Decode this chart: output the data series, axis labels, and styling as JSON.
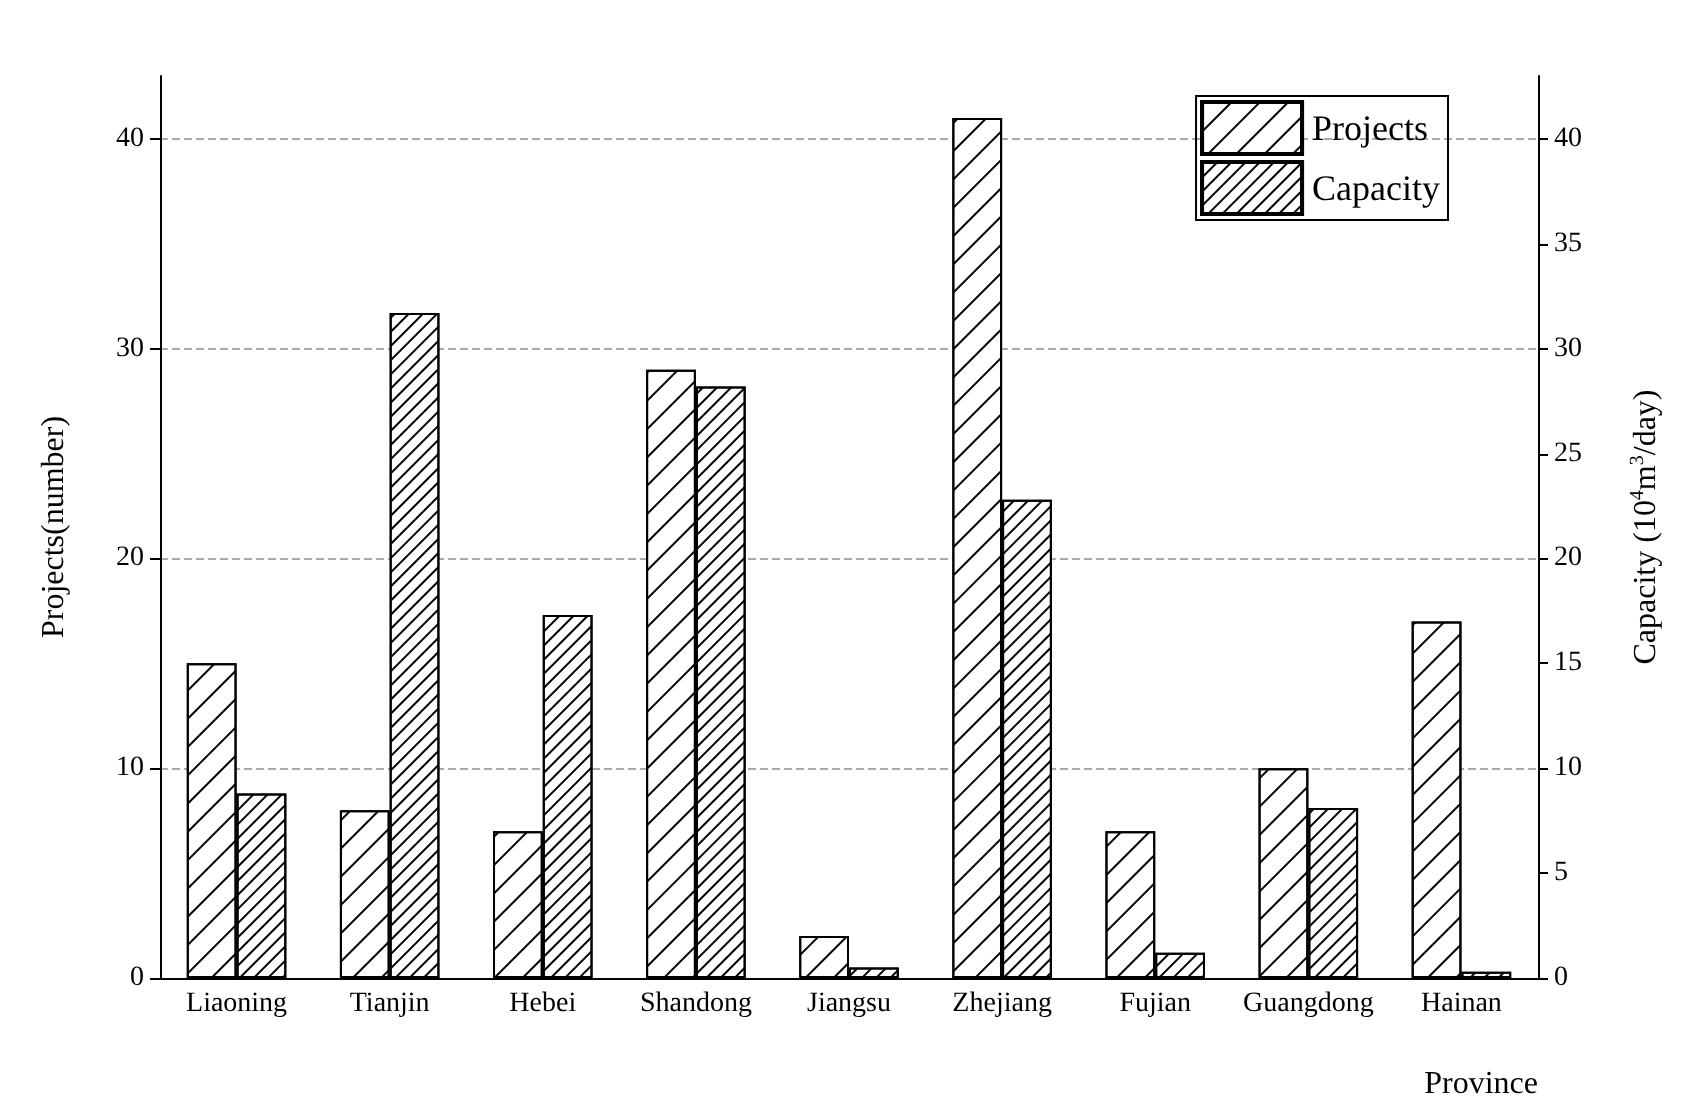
{
  "chart_data": {
    "type": "bar",
    "xlabel": "Province",
    "ylabel": "Projects(number)",
    "y2label": "Capacity (10$^{4}$m$^{3}$/day)",
    "categories": [
      "Liaoning",
      "Tianjin",
      "Hebei",
      "Shandong",
      "Jiangsu",
      "Zhejiang",
      "Fujian",
      "Guangdong",
      "Hainan"
    ],
    "series": [
      {
        "name": "Projects",
        "color": "#ffffff",
        "values": [
          15,
          8,
          7,
          29,
          2,
          41,
          7,
          10,
          17
        ]
      },
      {
        "name": "Capacity",
        "color": "#ffffff",
        "axis": "y2",
        "values": [
          8.8,
          31.7,
          17.3,
          28.2,
          0.5,
          22.8,
          1.2,
          8.1,
          0.3
        ]
      }
    ],
    "ylim": [
      0,
      43
    ],
    "yticks": [
      0,
      10,
      20,
      30,
      40
    ],
    "y2lim": [
      0,
      43
    ],
    "y2ticks": [
      0,
      5,
      10,
      15,
      20,
      25,
      30,
      35,
      40
    ],
    "grid": "y",
    "legend": "top right"
  }
}
